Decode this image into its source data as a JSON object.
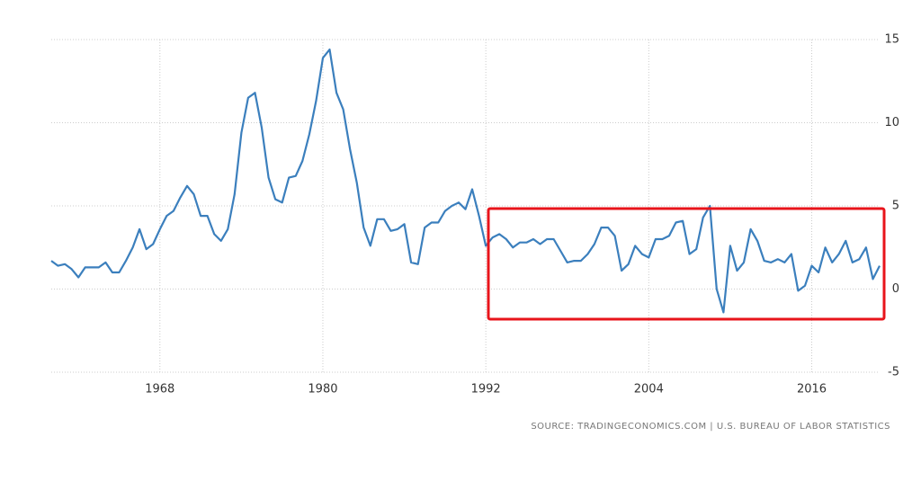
{
  "chart_data": {
    "type": "line",
    "source": "SOURCE: TRADINGECONOMICS.COM | U.S. BUREAU OF LABOR STATISTICS",
    "xlim": [
      1960,
      2021
    ],
    "xticks": [
      1968,
      1980,
      1992,
      2004,
      2016
    ],
    "ylim": [
      -5,
      15
    ],
    "yticks": [
      -5,
      0,
      5,
      10,
      15
    ],
    "grid": true,
    "series": [
      {
        "color": "#3b7fbd",
        "x": [
          1960,
          1960.5,
          1961,
          1961.5,
          1962,
          1962.5,
          1963,
          1963.5,
          1964,
          1964.5,
          1965,
          1965.5,
          1966,
          1966.5,
          1967,
          1967.5,
          1968,
          1968.5,
          1969,
          1969.5,
          1970,
          1970.5,
          1971,
          1971.5,
          1972,
          1972.5,
          1973,
          1973.5,
          1974,
          1974.5,
          1975,
          1975.5,
          1976,
          1976.5,
          1977,
          1977.5,
          1978,
          1978.5,
          1979,
          1979.5,
          1980,
          1980.5,
          1981,
          1981.5,
          1982,
          1982.5,
          1983,
          1983.5,
          1984,
          1984.5,
          1985,
          1985.5,
          1986,
          1986.5,
          1987,
          1987.5,
          1988,
          1988.5,
          1989,
          1989.5,
          1990,
          1990.5,
          1991,
          1991.5,
          1992,
          1992.5,
          1993,
          1993.5,
          1994,
          1994.5,
          1995,
          1995.5,
          1996,
          1996.5,
          1997,
          1997.5,
          1998,
          1998.5,
          1999,
          1999.5,
          2000,
          2000.5,
          2001,
          2001.5,
          2002,
          2002.5,
          2003,
          2003.5,
          2004,
          2004.5,
          2005,
          2005.5,
          2006,
          2006.5,
          2007,
          2007.5,
          2008,
          2008.5,
          2009,
          2009.5,
          2010,
          2010.5,
          2011,
          2011.5,
          2012,
          2012.5,
          2013,
          2013.5,
          2014,
          2014.5,
          2015,
          2015.5,
          2016,
          2016.5,
          2017,
          2017.5,
          2018,
          2018.5,
          2019,
          2019.5,
          2020,
          2020.5,
          2021
        ],
        "values": [
          1.7,
          1.4,
          1.5,
          1.2,
          0.7,
          1.3,
          1.3,
          1.3,
          1.6,
          1.0,
          1.0,
          1.7,
          2.5,
          3.6,
          2.4,
          2.7,
          3.6,
          4.4,
          4.7,
          5.5,
          6.2,
          5.7,
          4.4,
          4.4,
          3.3,
          2.9,
          3.6,
          5.7,
          9.4,
          11.5,
          11.8,
          9.7,
          6.7,
          5.4,
          5.2,
          6.7,
          6.8,
          7.7,
          9.3,
          11.3,
          13.9,
          14.4,
          11.8,
          10.8,
          8.4,
          6.4,
          3.7,
          2.6,
          4.2,
          4.2,
          3.5,
          3.6,
          3.9,
          1.6,
          1.5,
          3.7,
          4.0,
          4.0,
          4.7,
          5.0,
          5.2,
          4.8,
          6.0,
          4.4,
          2.6,
          3.1,
          3.3,
          3.0,
          2.5,
          2.8,
          2.8,
          3.0,
          2.7,
          3.0,
          3.0,
          2.3,
          1.6,
          1.7,
          1.7,
          2.1,
          2.7,
          3.7,
          3.7,
          3.2,
          1.1,
          1.5,
          2.6,
          2.1,
          1.9,
          3.0,
          3.0,
          3.2,
          4.0,
          4.1,
          2.1,
          2.4,
          4.3,
          5.0,
          0.0,
          -1.4,
          2.6,
          1.1,
          1.6,
          3.6,
          2.9,
          1.7,
          1.6,
          1.8,
          1.6,
          2.1,
          -0.1,
          0.2,
          1.4,
          1.0,
          2.5,
          1.6,
          2.1,
          2.9,
          1.6,
          1.8,
          2.5,
          0.6,
          1.4
        ]
      }
    ]
  }
}
